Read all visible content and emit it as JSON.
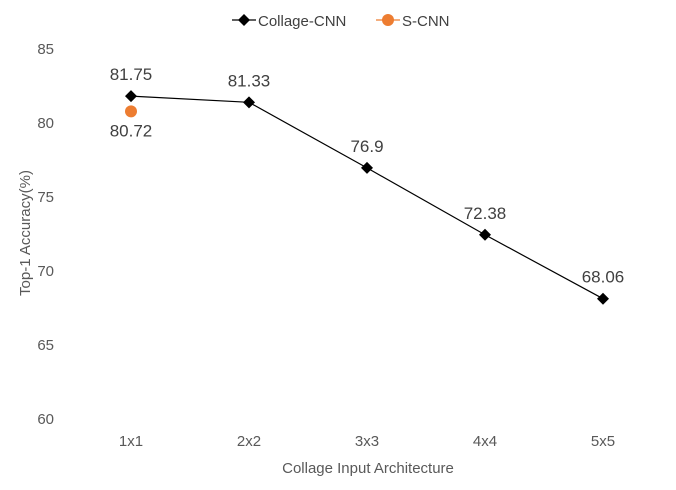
{
  "chart_data": {
    "type": "line",
    "title": "",
    "xlabel": "Collage Input Architecture",
    "ylabel": "Top-1 Accuracy(%)",
    "categories": [
      "1x1",
      "2x2",
      "3x3",
      "4x4",
      "5x5"
    ],
    "ylim": [
      60,
      85
    ],
    "yticks": [
      "60",
      "65",
      "70",
      "75",
      "80",
      "85"
    ],
    "grid": false,
    "legend_position": "top-center",
    "series": [
      {
        "name": "Collage-CNN",
        "values": [
          81.75,
          81.33,
          76.9,
          72.38,
          68.06
        ],
        "labels": [
          "81.75",
          "81.33",
          "76.9",
          "72.38",
          "68.06"
        ],
        "marker": "diamond",
        "color": "#000000"
      },
      {
        "name": "S-CNN",
        "values": [
          80.72,
          null,
          null,
          null,
          null
        ],
        "labels": [
          "80.72",
          "",
          "",
          "",
          ""
        ],
        "marker": "circle",
        "color": "#ED7D31"
      }
    ]
  }
}
